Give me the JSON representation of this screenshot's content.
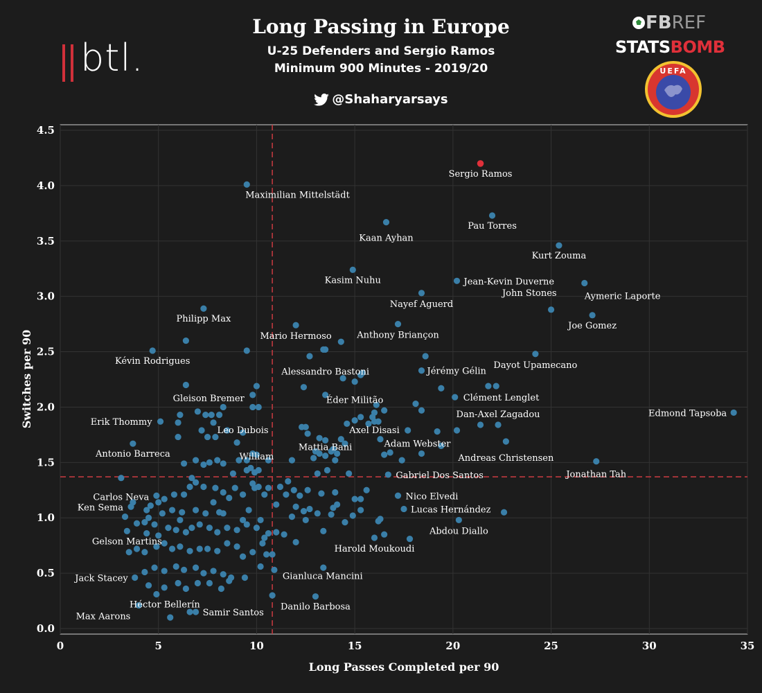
{
  "header": {
    "title": "Long Passing in Europe",
    "subtitle1": "U-25 Defenders and Sergio Ramos",
    "subtitle2": "Minimum 900 Minutes - 2019/20",
    "handle": "@Shaharyarsays"
  },
  "logos": {
    "btl": "btl.",
    "fbref_fb": "FB",
    "fbref_ref": "REF",
    "statsbomb_stats": "STATS",
    "statsbomb_bomb": "BOMB",
    "uefa": "UEFA"
  },
  "colors": {
    "background": "#1c1c1c",
    "point": "#3a7fa8",
    "highlight": "#e0303a",
    "refline": "#c0393f",
    "grid": "#333333"
  },
  "chart_data": {
    "type": "scatter",
    "xlabel": "Long Passes Completed per 90",
    "ylabel": "Switches per 90",
    "xlim": [
      0,
      35
    ],
    "ylim": [
      -0.05,
      4.55
    ],
    "xticks": [
      0,
      5,
      10,
      15,
      20,
      25,
      30,
      35
    ],
    "yticks": [
      0.0,
      0.5,
      1.0,
      1.5,
      2.0,
      2.5,
      3.0,
      3.5,
      4.0,
      4.5
    ],
    "grid": true,
    "ref_x": 10.8,
    "ref_y": 1.37,
    "highlight": {
      "name": "Sergio Ramos",
      "x": 21.4,
      "y": 4.2
    },
    "labeled_points": [
      {
        "name": "Maximilian Mittelstädt",
        "x": 9.5,
        "y": 4.01
      },
      {
        "name": "Kaan Ayhan",
        "x": 16.6,
        "y": 3.67
      },
      {
        "name": "Pau Torres",
        "x": 22.0,
        "y": 3.73
      },
      {
        "name": "Kurt Zouma",
        "x": 25.4,
        "y": 3.46
      },
      {
        "name": "Kasim Nuhu",
        "x": 14.9,
        "y": 3.24
      },
      {
        "name": "Jean-Kevin Duverne",
        "x": 20.2,
        "y": 3.14
      },
      {
        "name": "Aymeric Laporte",
        "x": 26.7,
        "y": 3.12
      },
      {
        "name": "Nayef Aguerd",
        "x": 18.4,
        "y": 3.03
      },
      {
        "name": "John Stones",
        "x": 25.0,
        "y": 2.88
      },
      {
        "name": "Joe Gomez",
        "x": 27.1,
        "y": 2.83
      },
      {
        "name": "Philipp Max",
        "x": 7.3,
        "y": 2.89
      },
      {
        "name": "Mario Hermoso",
        "x": 12.0,
        "y": 2.74
      },
      {
        "name": "Anthony Briançon",
        "x": 17.2,
        "y": 2.75
      },
      {
        "name": "Kévin Rodrigues",
        "x": 4.7,
        "y": 2.51
      },
      {
        "name": "Alessandro Bastoni",
        "x": 13.5,
        "y": 2.52
      },
      {
        "name": "Dayot Upamecano",
        "x": 24.2,
        "y": 2.48
      },
      {
        "name": "Jérémy Gélin",
        "x": 18.4,
        "y": 2.33
      },
      {
        "name": "Gleison Bremer",
        "x": 9.8,
        "y": 2.11
      },
      {
        "name": "Éder Militão",
        "x": 15.0,
        "y": 2.23
      },
      {
        "name": "Clément Lenglet",
        "x": 20.1,
        "y": 2.09
      },
      {
        "name": "Edmond Tapsoba",
        "x": 34.3,
        "y": 1.95
      },
      {
        "name": "Erik Thommy",
        "x": 5.1,
        "y": 1.87
      },
      {
        "name": "Dan-Axel Zagadou",
        "x": 22.3,
        "y": 1.84
      },
      {
        "name": "Axel Disasi",
        "x": 16.0,
        "y": 1.87
      },
      {
        "name": "Leo Dubois",
        "x": 9.3,
        "y": 1.77
      },
      {
        "name": "Mattia Bani",
        "x": 13.5,
        "y": 1.7
      },
      {
        "name": "William",
        "x": 10.0,
        "y": 1.57
      },
      {
        "name": "Adam Webster",
        "x": 18.4,
        "y": 1.58
      },
      {
        "name": "Andreas Christensen",
        "x": 22.7,
        "y": 1.69
      },
      {
        "name": "Antonio Barreca",
        "x": 3.7,
        "y": 1.67
      },
      {
        "name": "Jonathan Tah",
        "x": 27.3,
        "y": 1.51
      },
      {
        "name": "Gabriel Dos Santos",
        "x": 16.7,
        "y": 1.39
      },
      {
        "name": "Carlos Neva",
        "x": 3.1,
        "y": 1.36
      },
      {
        "name": "Nico Elvedi",
        "x": 17.2,
        "y": 1.2
      },
      {
        "name": "Ken Sema",
        "x": 3.6,
        "y": 1.1
      },
      {
        "name": "Lucas Hernández",
        "x": 17.5,
        "y": 1.08
      },
      {
        "name": "Abdou Diallo",
        "x": 20.3,
        "y": 0.98
      },
      {
        "name": "Gelson Martins",
        "x": 3.4,
        "y": 0.88
      },
      {
        "name": "Harold Moukoudi",
        "x": 16.0,
        "y": 0.82
      },
      {
        "name": "Gianluca Mancini",
        "x": 10.9,
        "y": 0.53
      },
      {
        "name": "Jack Stacey",
        "x": 3.8,
        "y": 0.46
      },
      {
        "name": "Héctor Bellerín",
        "x": 4.9,
        "y": 0.31
      },
      {
        "name": "Danilo Barbosa",
        "x": 13.0,
        "y": 0.29
      },
      {
        "name": "Max Aarons",
        "x": 4.0,
        "y": 0.21
      },
      {
        "name": "Samir Santos",
        "x": 6.9,
        "y": 0.15
      }
    ],
    "labels": {
      "Maximilian Mittelstädt": {
        "anchor": "start",
        "dx": -2,
        "dy": 19
      },
      "Kaan Ayhan": {
        "anchor": "middle",
        "dx": 0,
        "dy": 27
      },
      "Pau Torres": {
        "anchor": "middle",
        "dx": 0,
        "dy": 19
      },
      "Kurt Zouma": {
        "anchor": "middle",
        "dx": 0,
        "dy": 19
      },
      "Kasim Nuhu": {
        "anchor": "middle",
        "dx": 0,
        "dy": 19
      },
      "Jean-Kevin Duverne": {
        "anchor": "start",
        "dx": 10,
        "dy": 5
      },
      "Aymeric Laporte": {
        "anchor": "start",
        "dx": 0,
        "dy": 23
      },
      "Nayef Aguerd": {
        "anchor": "middle",
        "dx": 0,
        "dy": 20
      },
      "John Stones": {
        "anchor": "end",
        "dx": 8,
        "dy": -20
      },
      "Joe Gomez": {
        "anchor": "middle",
        "dx": 0,
        "dy": 19
      },
      "Philipp Max": {
        "anchor": "middle",
        "dx": 0,
        "dy": 19
      },
      "Mario Hermoso": {
        "anchor": "middle",
        "dx": 0,
        "dy": 20
      },
      "Anthony Briançon": {
        "anchor": "middle",
        "dx": 0,
        "dy": 20
      },
      "Kévin Rodrigues": {
        "anchor": "middle",
        "dx": 0,
        "dy": 19
      },
      "Alessandro Bastoni": {
        "anchor": "middle",
        "dx": 0,
        "dy": 36
      },
      "Dayot Upamecano": {
        "anchor": "middle",
        "dx": 0,
        "dy": 20
      },
      "Jérémy Gélin": {
        "anchor": "start",
        "dx": 8,
        "dy": 5
      },
      "Gleison Bremer": {
        "anchor": "end",
        "dx": -12,
        "dy": 9
      },
      "Éder Militão": {
        "anchor": "middle",
        "dx": 0,
        "dy": 31
      },
      "Clément Lenglet": {
        "anchor": "start",
        "dx": 12,
        "dy": 5
      },
      "Edmond Tapsoba": {
        "anchor": "end",
        "dx": -10,
        "dy": 5
      },
      "Erik Thommy": {
        "anchor": "end",
        "dx": -12,
        "dy": 5
      },
      "Dan-Axel Zagadou": {
        "anchor": "middle",
        "dx": 0,
        "dy": -11
      },
      "Axel Disasi": {
        "anchor": "middle",
        "dx": 0,
        "dy": 17
      },
      "Leo Dubois": {
        "anchor": "middle",
        "dx": 0,
        "dy": 1
      },
      "Mattia Bani": {
        "anchor": "middle",
        "dx": 0,
        "dy": 14
      },
      "William": {
        "anchor": "middle",
        "dx": 0,
        "dy": 7
      },
      "Adam Webster": {
        "anchor": "middle",
        "dx": -6,
        "dy": -10
      },
      "Andreas Christensen": {
        "anchor": "middle",
        "dx": 0,
        "dy": 28
      },
      "Antonio Barreca": {
        "anchor": "middle",
        "dx": 0,
        "dy": 19
      },
      "Jonathan Tah": {
        "anchor": "middle",
        "dx": 0,
        "dy": 23
      },
      "Gabriel Dos Santos": {
        "anchor": "start",
        "dx": 11,
        "dy": 5
      },
      "Carlos Neva": {
        "anchor": "middle",
        "dx": 0,
        "dy": 32
      },
      "Nico Elvedi": {
        "anchor": "start",
        "dx": 11,
        "dy": 5
      },
      "Ken Sema": {
        "anchor": "end",
        "dx": -11,
        "dy": 5
      },
      "Lucas Hernández": {
        "anchor": "start",
        "dx": 10,
        "dy": 5
      },
      "Abdou Diallo": {
        "anchor": "middle",
        "dx": 0,
        "dy": 20
      },
      "Gelson Martins": {
        "anchor": "middle",
        "dx": 0,
        "dy": 19
      },
      "Harold Moukoudi": {
        "anchor": "middle",
        "dx": 0,
        "dy": 20
      },
      "Gianluca Mancini": {
        "anchor": "start",
        "dx": 12,
        "dy": 13
      },
      "Jack Stacey": {
        "anchor": "end",
        "dx": -10,
        "dy": 5
      },
      "Héctor Bellerín": {
        "anchor": "middle",
        "dx": 12,
        "dy": 19
      },
      "Danilo Barbosa": {
        "anchor": "middle",
        "dx": 0,
        "dy": 19
      },
      "Max Aarons": {
        "anchor": "end",
        "dx": -12,
        "dy": 20
      },
      "Samir Santos": {
        "anchor": "start",
        "dx": 10,
        "dy": 5
      },
      "Sergio Ramos": {
        "anchor": "middle",
        "dx": 0,
        "dy": 19
      }
    },
    "unlabeled_points": [
      [
        12.7,
        2.46
      ],
      [
        13.4,
        2.52
      ],
      [
        14.3,
        2.59
      ],
      [
        14.4,
        2.26
      ],
      [
        15.3,
        2.29
      ],
      [
        15.4,
        2.31
      ],
      [
        13.5,
        2.11
      ],
      [
        12.4,
        2.18
      ],
      [
        9.5,
        2.51
      ],
      [
        6.4,
        2.6
      ],
      [
        6.4,
        2.2
      ],
      [
        10.0,
        2.19
      ],
      [
        10.1,
        2.0
      ],
      [
        9.8,
        2.0
      ],
      [
        8.3,
        2.0
      ],
      [
        7.7,
        1.93
      ],
      [
        7.4,
        1.93
      ],
      [
        7.0,
        1.96
      ],
      [
        8.1,
        1.93
      ],
      [
        7.8,
        1.86
      ],
      [
        6.1,
        1.93
      ],
      [
        6.0,
        1.86
      ],
      [
        8.5,
        1.79
      ],
      [
        7.9,
        1.73
      ],
      [
        7.2,
        1.79
      ],
      [
        7.5,
        1.73
      ],
      [
        6.0,
        1.73
      ],
      [
        9.0,
        1.68
      ],
      [
        9.8,
        1.58
      ],
      [
        10.6,
        1.52
      ],
      [
        9.5,
        1.52
      ],
      [
        9.1,
        1.52
      ],
      [
        8.0,
        1.52
      ],
      [
        7.6,
        1.5
      ],
      [
        8.3,
        1.49
      ],
      [
        7.3,
        1.48
      ],
      [
        6.9,
        1.52
      ],
      [
        6.3,
        1.49
      ],
      [
        10.1,
        1.43
      ],
      [
        9.9,
        1.41
      ],
      [
        9.7,
        1.45
      ],
      [
        9.5,
        1.43
      ],
      [
        8.8,
        1.4
      ],
      [
        11.8,
        1.52
      ],
      [
        12.3,
        1.82
      ],
      [
        12.5,
        1.82
      ],
      [
        12.6,
        1.76
      ],
      [
        13.0,
        1.6
      ],
      [
        13.2,
        1.58
      ],
      [
        13.5,
        1.56
      ],
      [
        13.8,
        1.6
      ],
      [
        13.9,
        1.62
      ],
      [
        14.1,
        1.58
      ],
      [
        14.3,
        1.71
      ],
      [
        14.5,
        1.67
      ],
      [
        14.6,
        1.85
      ],
      [
        15.0,
        1.88
      ],
      [
        15.3,
        1.91
      ],
      [
        15.7,
        1.85
      ],
      [
        15.9,
        1.91
      ],
      [
        16.0,
        1.95
      ],
      [
        16.2,
        1.87
      ],
      [
        16.1,
        2.02
      ],
      [
        16.5,
        1.97
      ],
      [
        16.3,
        1.71
      ],
      [
        16.5,
        1.57
      ],
      [
        16.8,
        1.59
      ],
      [
        17.4,
        1.52
      ],
      [
        17.7,
        1.79
      ],
      [
        18.1,
        2.03
      ],
      [
        18.4,
        1.97
      ],
      [
        18.6,
        2.46
      ],
      [
        19.4,
        2.17
      ],
      [
        19.4,
        1.65
      ],
      [
        19.2,
        1.78
      ],
      [
        20.2,
        1.79
      ],
      [
        21.4,
        1.84
      ],
      [
        21.8,
        2.19
      ],
      [
        22.2,
        2.19
      ],
      [
        13.6,
        1.43
      ],
      [
        13.1,
        1.4
      ],
      [
        13.3,
        1.22
      ],
      [
        12.6,
        1.25
      ],
      [
        12.2,
        1.2
      ],
      [
        11.9,
        1.25
      ],
      [
        11.6,
        1.33
      ],
      [
        11.2,
        1.28
      ],
      [
        11.5,
        1.21
      ],
      [
        11.0,
        1.12
      ],
      [
        10.4,
        1.21
      ],
      [
        10.1,
        1.28
      ],
      [
        9.9,
        1.27
      ],
      [
        9.3,
        1.21
      ],
      [
        8.9,
        1.27
      ],
      [
        8.6,
        1.18
      ],
      [
        8.3,
        1.23
      ],
      [
        7.9,
        1.27
      ],
      [
        7.3,
        1.28
      ],
      [
        6.9,
        1.32
      ],
      [
        6.6,
        1.28
      ],
      [
        6.7,
        1.36
      ],
      [
        6.3,
        1.21
      ],
      [
        5.8,
        1.21
      ],
      [
        5.3,
        1.17
      ],
      [
        5.0,
        1.14
      ],
      [
        4.9,
        1.2
      ],
      [
        4.6,
        1.11
      ],
      [
        4.4,
        1.07
      ],
      [
        3.7,
        1.14
      ],
      [
        3.3,
        1.01
      ],
      [
        4.3,
        0.96
      ],
      [
        4.8,
        0.94
      ],
      [
        5.5,
        0.91
      ],
      [
        5.9,
        0.89
      ],
      [
        6.4,
        0.87
      ],
      [
        6.7,
        0.91
      ],
      [
        7.1,
        0.94
      ],
      [
        7.6,
        0.91
      ],
      [
        8.0,
        0.87
      ],
      [
        8.5,
        0.91
      ],
      [
        9.0,
        0.89
      ],
      [
        9.5,
        0.94
      ],
      [
        10.0,
        0.91
      ],
      [
        10.4,
        0.82
      ],
      [
        10.6,
        0.86
      ],
      [
        11.0,
        0.87
      ],
      [
        11.4,
        0.85
      ],
      [
        12.0,
        0.78
      ],
      [
        12.5,
        0.98
      ],
      [
        12.7,
        1.08
      ],
      [
        13.1,
        1.04
      ],
      [
        13.4,
        0.88
      ],
      [
        13.9,
        1.09
      ],
      [
        14.1,
        1.12
      ],
      [
        14.5,
        0.96
      ],
      [
        14.9,
        1.02
      ],
      [
        15.3,
        1.07
      ],
      [
        15.6,
        1.25
      ],
      [
        16.2,
        0.97
      ],
      [
        16.5,
        0.85
      ],
      [
        16.3,
        0.99
      ],
      [
        22.6,
        1.05
      ],
      [
        17.8,
        0.81
      ],
      [
        3.5,
        0.69
      ],
      [
        3.9,
        0.72
      ],
      [
        4.3,
        0.69
      ],
      [
        4.9,
        0.74
      ],
      [
        5.3,
        0.77
      ],
      [
        5.7,
        0.72
      ],
      [
        6.1,
        0.74
      ],
      [
        6.6,
        0.7
      ],
      [
        7.1,
        0.72
      ],
      [
        7.5,
        0.72
      ],
      [
        8.0,
        0.7
      ],
      [
        8.5,
        0.77
      ],
      [
        9.0,
        0.74
      ],
      [
        9.3,
        0.65
      ],
      [
        9.8,
        0.69
      ],
      [
        10.3,
        0.77
      ],
      [
        10.5,
        0.67
      ],
      [
        10.8,
        0.67
      ],
      [
        4.3,
        0.51
      ],
      [
        4.8,
        0.55
      ],
      [
        5.3,
        0.52
      ],
      [
        5.9,
        0.56
      ],
      [
        6.3,
        0.53
      ],
      [
        6.9,
        0.55
      ],
      [
        7.3,
        0.5
      ],
      [
        7.8,
        0.52
      ],
      [
        8.3,
        0.49
      ],
      [
        8.7,
        0.46
      ],
      [
        9.4,
        0.46
      ],
      [
        10.2,
        0.56
      ],
      [
        4.5,
        0.39
      ],
      [
        5.3,
        0.37
      ],
      [
        6.0,
        0.41
      ],
      [
        6.4,
        0.36
      ],
      [
        7.0,
        0.41
      ],
      [
        7.6,
        0.41
      ],
      [
        8.2,
        0.36
      ],
      [
        8.6,
        0.43
      ],
      [
        13.4,
        0.55
      ],
      [
        10.8,
        0.3
      ],
      [
        5.6,
        0.1
      ],
      [
        6.6,
        0.15
      ],
      [
        9.8,
        1.31
      ],
      [
        10.6,
        1.27
      ],
      [
        14.7,
        1.4
      ],
      [
        15.3,
        1.17
      ],
      [
        12.9,
        1.54
      ],
      [
        13.2,
        1.72
      ],
      [
        14.0,
        1.52
      ],
      [
        12.0,
        1.1
      ],
      [
        12.4,
        1.06
      ],
      [
        14.0,
        1.23
      ],
      [
        15.0,
        1.17
      ],
      [
        6.9,
        1.07
      ],
      [
        7.4,
        1.04
      ],
      [
        7.8,
        1.14
      ],
      [
        8.1,
        1.05
      ],
      [
        6.2,
        1.05
      ],
      [
        5.7,
        1.07
      ],
      [
        5.2,
        1.04
      ],
      [
        4.4,
        0.86
      ],
      [
        3.9,
        0.95
      ],
      [
        4.5,
        1.0
      ],
      [
        5.0,
        0.84
      ],
      [
        6.1,
        0.98
      ],
      [
        8.3,
        1.04
      ],
      [
        9.3,
        0.98
      ],
      [
        9.6,
        1.07
      ],
      [
        10.2,
        0.98
      ],
      [
        11.8,
        1.01
      ],
      [
        13.8,
        1.03
      ]
    ]
  }
}
